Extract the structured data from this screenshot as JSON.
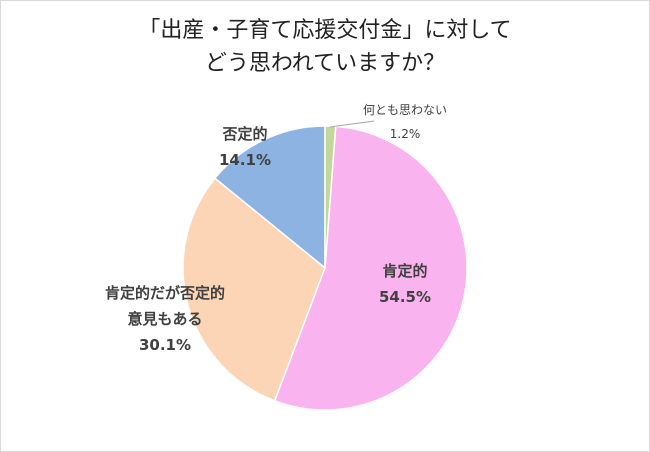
{
  "chart_data": {
    "type": "pie",
    "title": "「出産・子育て応援交付金」に対して\nどう思われていますか？",
    "categories": [
      "何とも思わない",
      "肯定的",
      "肯定的だが否定的\n意見もある",
      "否定的"
    ],
    "values": [
      1.2,
      54.5,
      30.1,
      14.1
    ],
    "value_labels": [
      "1.2%",
      "54.5%",
      "30.1%",
      "14.1%"
    ],
    "colors": [
      "#c3d69b",
      "#f9b3ef",
      "#fbd5b5",
      "#8db3e2"
    ]
  }
}
